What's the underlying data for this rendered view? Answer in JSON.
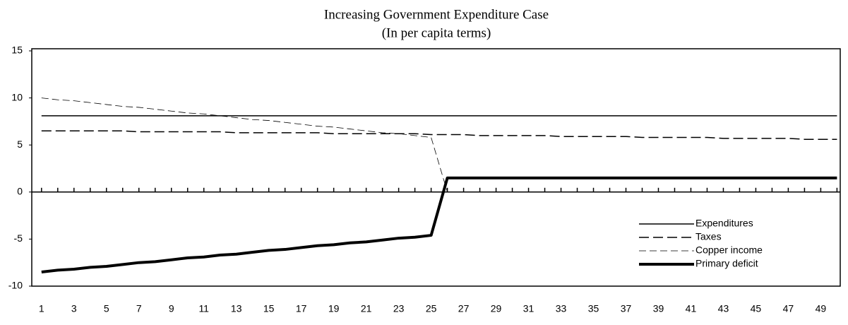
{
  "chart_data": {
    "type": "line",
    "title": "Increasing Government Expenditure Case",
    "subtitle": "(In per capita terms)",
    "x": [
      1,
      2,
      3,
      4,
      5,
      6,
      7,
      8,
      9,
      10,
      11,
      12,
      13,
      14,
      15,
      16,
      17,
      18,
      19,
      20,
      21,
      22,
      23,
      24,
      25,
      26,
      27,
      28,
      29,
      30,
      31,
      32,
      33,
      34,
      35,
      36,
      37,
      38,
      39,
      40,
      41,
      42,
      43,
      44,
      45,
      46,
      47,
      48,
      49,
      50
    ],
    "xlim": [
      0.4,
      50.2
    ],
    "xticks": [
      1,
      3,
      5,
      7,
      9,
      11,
      13,
      15,
      17,
      19,
      21,
      23,
      25,
      27,
      29,
      31,
      33,
      35,
      37,
      39,
      41,
      43,
      45,
      47,
      49
    ],
    "ylim": [
      -10,
      15
    ],
    "yticks": [
      15,
      10,
      5,
      0,
      -5,
      -10
    ],
    "legend": "lower right",
    "series": [
      {
        "name": "Expenditures",
        "color": "#000000",
        "line_style": "solid",
        "line_width": 1.5,
        "values": [
          8.1,
          8.1,
          8.1,
          8.1,
          8.1,
          8.1,
          8.1,
          8.1,
          8.1,
          8.1,
          8.1,
          8.1,
          8.1,
          8.1,
          8.1,
          8.1,
          8.1,
          8.1,
          8.1,
          8.1,
          8.1,
          8.1,
          8.1,
          8.1,
          8.1,
          8.1,
          8.1,
          8.1,
          8.1,
          8.1,
          8.1,
          8.1,
          8.1,
          8.1,
          8.1,
          8.1,
          8.1,
          8.1,
          8.1,
          8.1,
          8.1,
          8.1,
          8.1,
          8.1,
          8.1,
          8.1,
          8.1,
          8.1,
          8.1,
          8.1
        ]
      },
      {
        "name": "Taxes",
        "color": "#000000",
        "line_style": "dashed",
        "line_width": 1.5,
        "values": [
          6.5,
          6.5,
          6.5,
          6.5,
          6.5,
          6.5,
          6.4,
          6.4,
          6.4,
          6.4,
          6.4,
          6.4,
          6.3,
          6.3,
          6.3,
          6.3,
          6.3,
          6.3,
          6.2,
          6.2,
          6.2,
          6.2,
          6.2,
          6.2,
          6.1,
          6.1,
          6.1,
          6.0,
          6.0,
          6.0,
          6.0,
          6.0,
          5.9,
          5.9,
          5.9,
          5.9,
          5.9,
          5.8,
          5.8,
          5.8,
          5.8,
          5.8,
          5.7,
          5.7,
          5.7,
          5.7,
          5.7,
          5.6,
          5.6,
          5.6
        ]
      },
      {
        "name": "Copper income",
        "color": "#000000",
        "line_style": "thin-dashed",
        "line_width": 0.8,
        "values": [
          10.0,
          9.8,
          9.7,
          9.5,
          9.3,
          9.1,
          9.0,
          8.8,
          8.6,
          8.4,
          8.3,
          8.1,
          7.9,
          7.7,
          7.6,
          7.4,
          7.2,
          7.0,
          6.9,
          6.7,
          6.5,
          6.3,
          6.2,
          6.0,
          5.8,
          0,
          0,
          0,
          0,
          0,
          0,
          0,
          0,
          0,
          0,
          0,
          0,
          0,
          0,
          0,
          0,
          0,
          0,
          0,
          0,
          0,
          0,
          0,
          0,
          0
        ]
      },
      {
        "name": "Primary deficit",
        "color": "#000000",
        "line_style": "solid",
        "line_width": 4,
        "values": [
          -8.5,
          -8.3,
          -8.2,
          -8.0,
          -7.9,
          -7.7,
          -7.5,
          -7.4,
          -7.2,
          -7.0,
          -6.9,
          -6.7,
          -6.6,
          -6.4,
          -6.2,
          -6.1,
          -5.9,
          -5.7,
          -5.6,
          -5.4,
          -5.3,
          -5.1,
          -4.9,
          -4.8,
          -4.6,
          1.5,
          1.5,
          1.5,
          1.5,
          1.5,
          1.5,
          1.5,
          1.5,
          1.5,
          1.5,
          1.5,
          1.5,
          1.5,
          1.5,
          1.5,
          1.5,
          1.5,
          1.5,
          1.5,
          1.5,
          1.5,
          1.5,
          1.5,
          1.5,
          1.5
        ]
      }
    ]
  }
}
